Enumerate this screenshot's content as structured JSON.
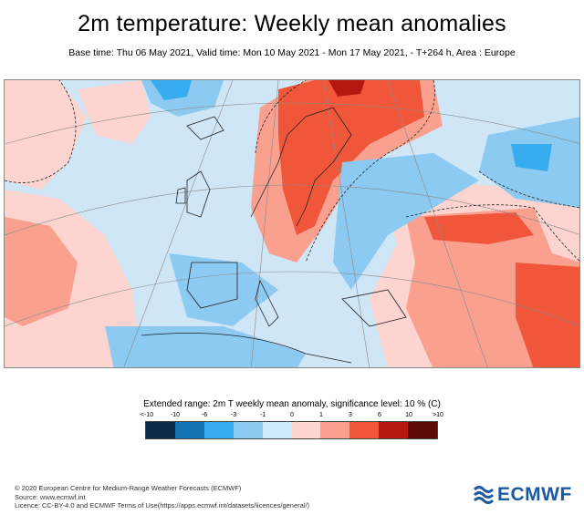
{
  "title": "2m temperature: Weekly mean anomalies",
  "subtitle": "Base time: Thu 06 May 2021, Valid time: Mon 10 May 2021 - Mon 17 May 2021, - T+264 h, Area : Europe",
  "legend": {
    "title": "Extended range: 2m T weekly mean anomaly, significance level: 10 % (C)",
    "ticks": [
      "<-10",
      "-10",
      "-6",
      "-3",
      "-1",
      "0",
      "1",
      "3",
      "6",
      "10",
      ">10"
    ],
    "colors": [
      "#0a2a48",
      "#1673b4",
      "#37adf0",
      "#8ccaf2",
      "#cde9fb",
      "#fdd4d0",
      "#f9a08f",
      "#f0573a",
      "#b3190e",
      "#5a0a06"
    ]
  },
  "footer": {
    "line1": "© 2020 European Centre for Medium-Range Weather Forecasts (ECMWF)",
    "line2": "Source: www.ecmwf.int",
    "line3": "Licence: CC-BY-4.0 and ECMWF Terms of Use(https://apps.ecmwf.int/datasets/licences/general/)"
  },
  "logo": {
    "text": "ECMWF"
  }
}
